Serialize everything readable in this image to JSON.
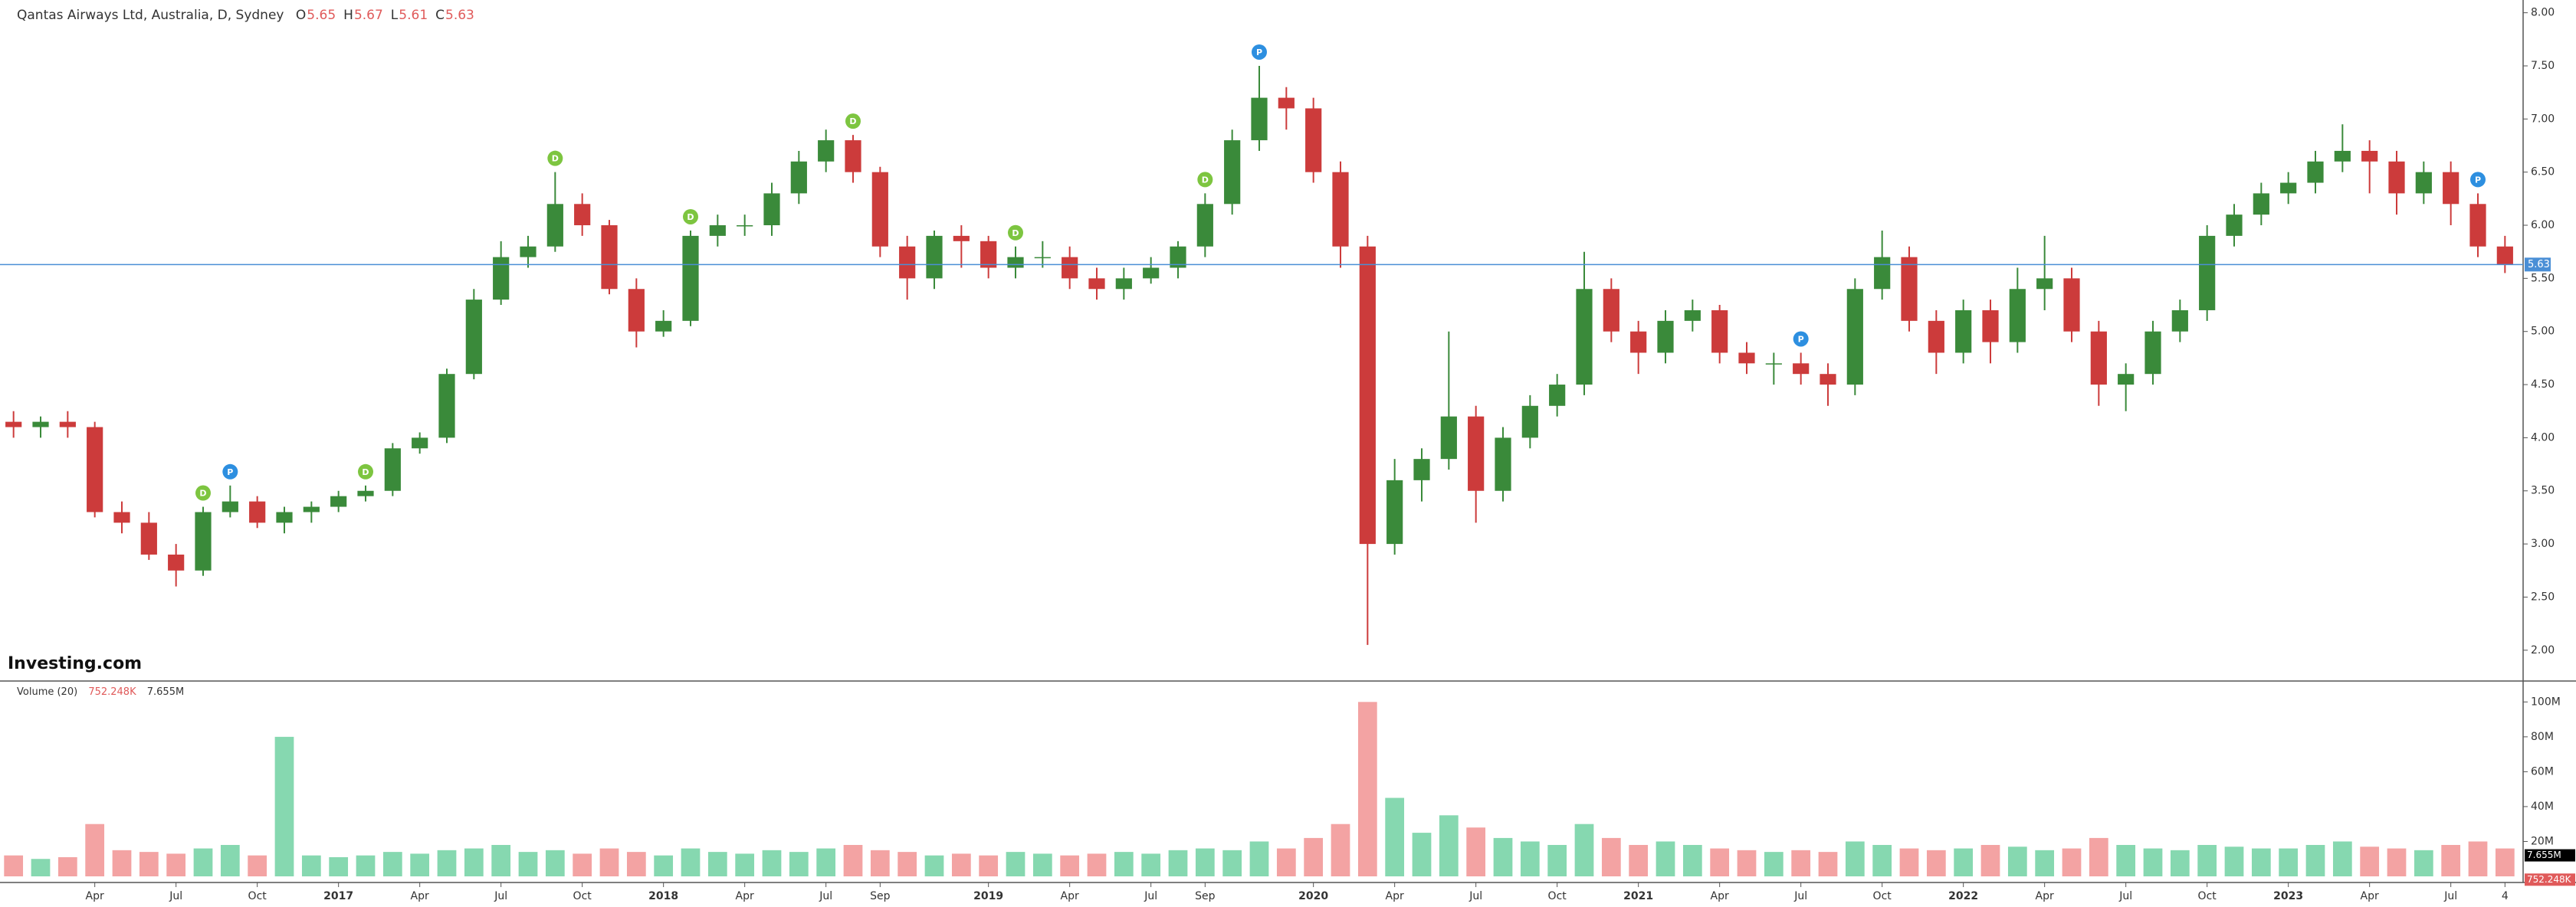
{
  "chart_data": {
    "type": "candlestick",
    "title": "Qantas Airways Ltd, Australia, D, Sydney",
    "ohlc_legend": [
      {
        "label": "O",
        "value": 5.65
      },
      {
        "label": "H",
        "value": 5.67
      },
      {
        "label": "L",
        "value": 5.61
      },
      {
        "label": "C",
        "value": 5.63
      }
    ],
    "watermark": "Investing.com",
    "categories": [
      "2016-01",
      "2016-02",
      "2016-03",
      "2016-04",
      "2016-05",
      "2016-06",
      "2016-07",
      "2016-08",
      "2016-09",
      "2016-10",
      "2016-11",
      "2016-12",
      "2017-01",
      "2017-02",
      "2017-03",
      "2017-04",
      "2017-05",
      "2017-06",
      "2017-07",
      "2017-08",
      "2017-09",
      "2017-10",
      "2017-11",
      "2017-12",
      "2018-01",
      "2018-02",
      "2018-03",
      "2018-04",
      "2018-05",
      "2018-06",
      "2018-07",
      "2018-08",
      "2018-09",
      "2018-10",
      "2018-11",
      "2018-12",
      "2019-01",
      "2019-02",
      "2019-03",
      "2019-04",
      "2019-05",
      "2019-06",
      "2019-07",
      "2019-08",
      "2019-09",
      "2019-10",
      "2019-11",
      "2019-12",
      "2020-01",
      "2020-02",
      "2020-03",
      "2020-04",
      "2020-05",
      "2020-06",
      "2020-07",
      "2020-08",
      "2020-09",
      "2020-10",
      "2020-11",
      "2020-12",
      "2021-01",
      "2021-02",
      "2021-03",
      "2021-04",
      "2021-05",
      "2021-06",
      "2021-07",
      "2021-08",
      "2021-09",
      "2021-10",
      "2021-11",
      "2021-12",
      "2022-01",
      "2022-02",
      "2022-03",
      "2022-04",
      "2022-05",
      "2022-06",
      "2022-07",
      "2022-08",
      "2022-09",
      "2022-10",
      "2022-11",
      "2022-12",
      "2023-01",
      "2023-02",
      "2023-03",
      "2023-04",
      "2023-05",
      "2023-06",
      "2023-07",
      "2023-08",
      "2023-09"
    ],
    "open": [
      4.15,
      4.1,
      4.15,
      4.1,
      3.3,
      3.2,
      2.9,
      2.75,
      3.3,
      3.4,
      3.2,
      3.3,
      3.35,
      3.45,
      3.5,
      3.9,
      4.0,
      4.6,
      5.3,
      5.7,
      5.8,
      6.2,
      6.0,
      5.4,
      5.0,
      5.1,
      5.9,
      6.0,
      6.0,
      6.3,
      6.6,
      6.8,
      6.5,
      5.8,
      5.5,
      5.9,
      5.85,
      5.6,
      5.7,
      5.7,
      5.5,
      5.4,
      5.5,
      5.6,
      5.8,
      6.2,
      6.8,
      7.2,
      7.1,
      6.5,
      5.8,
      3.0,
      3.6,
      3.8,
      4.2,
      3.5,
      4.0,
      4.3,
      4.5,
      5.4,
      5.0,
      4.8,
      5.1,
      5.2,
      4.8,
      4.7,
      4.7,
      4.6,
      4.5,
      5.4,
      5.7,
      5.1,
      4.8,
      5.2,
      4.9,
      5.4,
      5.5,
      5.0,
      4.5,
      4.6,
      5.0,
      5.2,
      5.9,
      6.1,
      6.3,
      6.4,
      6.6,
      6.7,
      6.6,
      6.3,
      6.5,
      6.2,
      5.8
    ],
    "high": [
      4.25,
      4.2,
      4.25,
      4.15,
      3.4,
      3.3,
      3.0,
      3.35,
      3.55,
      3.45,
      3.35,
      3.4,
      3.5,
      3.55,
      3.95,
      4.05,
      4.65,
      5.4,
      5.85,
      5.9,
      6.5,
      6.3,
      6.05,
      5.5,
      5.2,
      5.95,
      6.1,
      6.1,
      6.4,
      6.7,
      6.9,
      6.85,
      6.55,
      5.9,
      5.95,
      6.0,
      5.9,
      5.8,
      5.85,
      5.8,
      5.6,
      5.6,
      5.7,
      5.85,
      6.3,
      6.9,
      7.5,
      7.3,
      7.2,
      6.6,
      5.9,
      3.8,
      3.9,
      5.0,
      4.3,
      4.1,
      4.4,
      4.6,
      5.75,
      5.5,
      5.1,
      5.2,
      5.3,
      5.25,
      4.9,
      4.8,
      4.8,
      4.7,
      5.5,
      5.95,
      5.8,
      5.2,
      5.3,
      5.3,
      5.6,
      5.9,
      5.6,
      5.1,
      4.7,
      5.1,
      5.3,
      6.0,
      6.2,
      6.4,
      6.5,
      6.7,
      6.95,
      6.8,
      6.7,
      6.6,
      6.6,
      6.3,
      5.9
    ],
    "low": [
      4.0,
      4.0,
      4.0,
      3.25,
      3.1,
      2.85,
      2.6,
      2.7,
      3.25,
      3.15,
      3.1,
      3.2,
      3.3,
      3.4,
      3.45,
      3.85,
      3.95,
      4.55,
      5.25,
      5.6,
      5.75,
      5.9,
      5.35,
      4.85,
      4.95,
      5.05,
      5.8,
      5.9,
      5.9,
      6.2,
      6.5,
      6.4,
      5.7,
      5.3,
      5.4,
      5.6,
      5.5,
      5.5,
      5.6,
      5.4,
      5.3,
      5.3,
      5.45,
      5.5,
      5.7,
      6.1,
      6.7,
      6.9,
      6.4,
      5.6,
      2.05,
      2.9,
      3.4,
      3.7,
      3.2,
      3.4,
      3.9,
      4.2,
      4.4,
      4.9,
      4.6,
      4.7,
      5.0,
      4.7,
      4.6,
      4.5,
      4.5,
      4.3,
      4.4,
      5.3,
      5.0,
      4.6,
      4.7,
      4.7,
      4.8,
      5.2,
      4.9,
      4.3,
      4.25,
      4.5,
      4.9,
      5.1,
      5.8,
      6.0,
      6.2,
      6.3,
      6.5,
      6.3,
      6.1,
      6.2,
      6.0,
      5.7,
      5.55
    ],
    "close": [
      4.1,
      4.15,
      4.1,
      3.3,
      3.2,
      2.9,
      2.75,
      3.3,
      3.4,
      3.2,
      3.3,
      3.35,
      3.45,
      3.5,
      3.9,
      4.0,
      4.6,
      5.3,
      5.7,
      5.8,
      6.2,
      6.0,
      5.4,
      5.0,
      5.1,
      5.9,
      6.0,
      6.0,
      6.3,
      6.6,
      6.8,
      6.5,
      5.8,
      5.5,
      5.9,
      5.85,
      5.6,
      5.7,
      5.7,
      5.5,
      5.4,
      5.5,
      5.6,
      5.8,
      6.2,
      6.8,
      7.2,
      7.1,
      6.5,
      5.8,
      3.0,
      3.6,
      3.8,
      4.2,
      3.5,
      4.0,
      4.3,
      4.5,
      5.4,
      5.0,
      4.8,
      5.1,
      5.2,
      4.8,
      4.7,
      4.7,
      4.6,
      4.5,
      5.4,
      5.7,
      5.1,
      4.8,
      5.2,
      4.9,
      5.4,
      5.5,
      5.0,
      4.5,
      4.6,
      5.0,
      5.2,
      5.9,
      6.1,
      6.3,
      6.4,
      6.6,
      6.7,
      6.6,
      6.3,
      6.5,
      6.2,
      5.8,
      5.63
    ],
    "up_color": "#3a8a3a",
    "down_color": "#cc3b3b",
    "price_line_color": "#4a8fd6",
    "ylim": [
      1.71,
      8.12
    ],
    "yticks": [
      {
        "value": 2,
        "label": "2.00"
      },
      {
        "value": 2.5,
        "label": "2.50"
      },
      {
        "value": 3,
        "label": "3.00"
      },
      {
        "value": 3.5,
        "label": "3.50"
      },
      {
        "value": 4,
        "label": "4.00"
      },
      {
        "value": 4.5,
        "label": "4.50"
      },
      {
        "value": 5,
        "label": "5.00"
      },
      {
        "value": 5.5,
        "label": "5.50"
      },
      {
        "value": 6,
        "label": "6.00"
      },
      {
        "value": 6.5,
        "label": "6.50"
      },
      {
        "value": 7,
        "label": "7.00"
      },
      {
        "value": 7.5,
        "label": "7.50"
      },
      {
        "value": 8,
        "label": "8.00"
      }
    ],
    "events": [
      {
        "date": "2016-08",
        "label": "D",
        "color": "#7dc540"
      },
      {
        "date": "2016-09",
        "label": "P",
        "color": "#2d8fe0"
      },
      {
        "date": "2017-02",
        "label": "D",
        "color": "#7dc540"
      },
      {
        "date": "2017-09",
        "label": "D",
        "color": "#7dc540"
      },
      {
        "date": "2018-02",
        "label": "D",
        "color": "#7dc540"
      },
      {
        "date": "2018-08",
        "label": "D",
        "color": "#7dc540"
      },
      {
        "date": "2019-02",
        "label": "D",
        "color": "#7dc540"
      },
      {
        "date": "2019-09",
        "label": "D",
        "color": "#7dc540"
      },
      {
        "date": "2019-11",
        "label": "P",
        "color": "#2d8fe0"
      },
      {
        "date": "2021-07",
        "label": "P",
        "color": "#2d8fe0"
      },
      {
        "date": "2023-08",
        "label": "P",
        "color": "#2d8fe0"
      }
    ],
    "volume_title": "Volume (20)",
    "volume_legend": [
      {
        "value": 752248,
        "label": "752.248K"
      },
      {
        "value": 7655000,
        "label": "7.655M"
      }
    ],
    "volume": [
      12000000,
      10000000,
      11000000,
      30000000,
      15000000,
      14000000,
      13000000,
      16000000,
      18000000,
      12000000,
      80000000,
      12000000,
      11000000,
      12000000,
      14000000,
      13000000,
      15000000,
      16000000,
      18000000,
      14000000,
      15000000,
      13000000,
      16000000,
      14000000,
      12000000,
      16000000,
      14000000,
      13000000,
      15000000,
      14000000,
      16000000,
      18000000,
      15000000,
      14000000,
      12000000,
      13000000,
      12000000,
      14000000,
      13000000,
      12000000,
      13000000,
      14000000,
      13000000,
      15000000,
      16000000,
      15000000,
      20000000,
      16000000,
      22000000,
      30000000,
      100000000,
      45000000,
      25000000,
      35000000,
      28000000,
      22000000,
      20000000,
      18000000,
      30000000,
      22000000,
      18000000,
      20000000,
      18000000,
      16000000,
      15000000,
      14000000,
      15000000,
      14000000,
      20000000,
      18000000,
      16000000,
      15000000,
      16000000,
      18000000,
      17000000,
      15000000,
      16000000,
      22000000,
      18000000,
      16000000,
      15000000,
      18000000,
      17000000,
      16000000,
      16000000,
      18000000,
      20000000,
      17000000,
      16000000,
      15000000,
      18000000,
      20000000,
      16000000
    ],
    "volume_up_color": "#86d8b0",
    "volume_down_color": "#f3a3a3",
    "volume_ylim": [
      0,
      112000000
    ],
    "volume_yticks": [
      {
        "value": 20000000,
        "label": "20M"
      },
      {
        "value": 40000000,
        "label": "40M"
      },
      {
        "value": 60000000,
        "label": "60M"
      },
      {
        "value": 80000000,
        "label": "80M"
      },
      {
        "value": 100000000,
        "label": "100M"
      }
    ],
    "xticks": [
      {
        "value": "2016-04",
        "label": "Apr"
      },
      {
        "value": "2016-07",
        "label": "Jul"
      },
      {
        "value": "2016-10",
        "label": "Oct"
      },
      {
        "value": "2017-01",
        "label": "2017"
      },
      {
        "value": "2017-04",
        "label": "Apr"
      },
      {
        "value": "2017-07",
        "label": "Jul"
      },
      {
        "value": "2017-10",
        "label": "Oct"
      },
      {
        "value": "2018-01",
        "label": "2018"
      },
      {
        "value": "2018-04",
        "label": "Apr"
      },
      {
        "value": "2018-07",
        "label": "Jul"
      },
      {
        "value": "2018-09",
        "label": "Sep"
      },
      {
        "value": "2019-01",
        "label": "2019"
      },
      {
        "value": "2019-04",
        "label": "Apr"
      },
      {
        "value": "2019-07",
        "label": "Jul"
      },
      {
        "value": "2019-09",
        "label": "Sep"
      },
      {
        "value": "2020-01",
        "label": "2020"
      },
      {
        "value": "2020-04",
        "label": "Apr"
      },
      {
        "value": "2020-07",
        "label": "Jul"
      },
      {
        "value": "2020-10",
        "label": "Oct"
      },
      {
        "value": "2021-01",
        "label": "2021"
      },
      {
        "value": "2021-04",
        "label": "Apr"
      },
      {
        "value": "2021-07",
        "label": "Jul"
      },
      {
        "value": "2021-10",
        "label": "Oct"
      },
      {
        "value": "2022-01",
        "label": "2022"
      },
      {
        "value": "2022-04",
        "label": "Apr"
      },
      {
        "value": "2022-07",
        "label": "Jul"
      },
      {
        "value": "2022-10",
        "label": "Oct"
      },
      {
        "value": "2023-01",
        "label": "2023"
      },
      {
        "value": "2023-04",
        "label": "Apr"
      },
      {
        "value": "2023-07",
        "label": "Jul"
      },
      {
        "value": "2023-09",
        "label": "4"
      }
    ]
  }
}
